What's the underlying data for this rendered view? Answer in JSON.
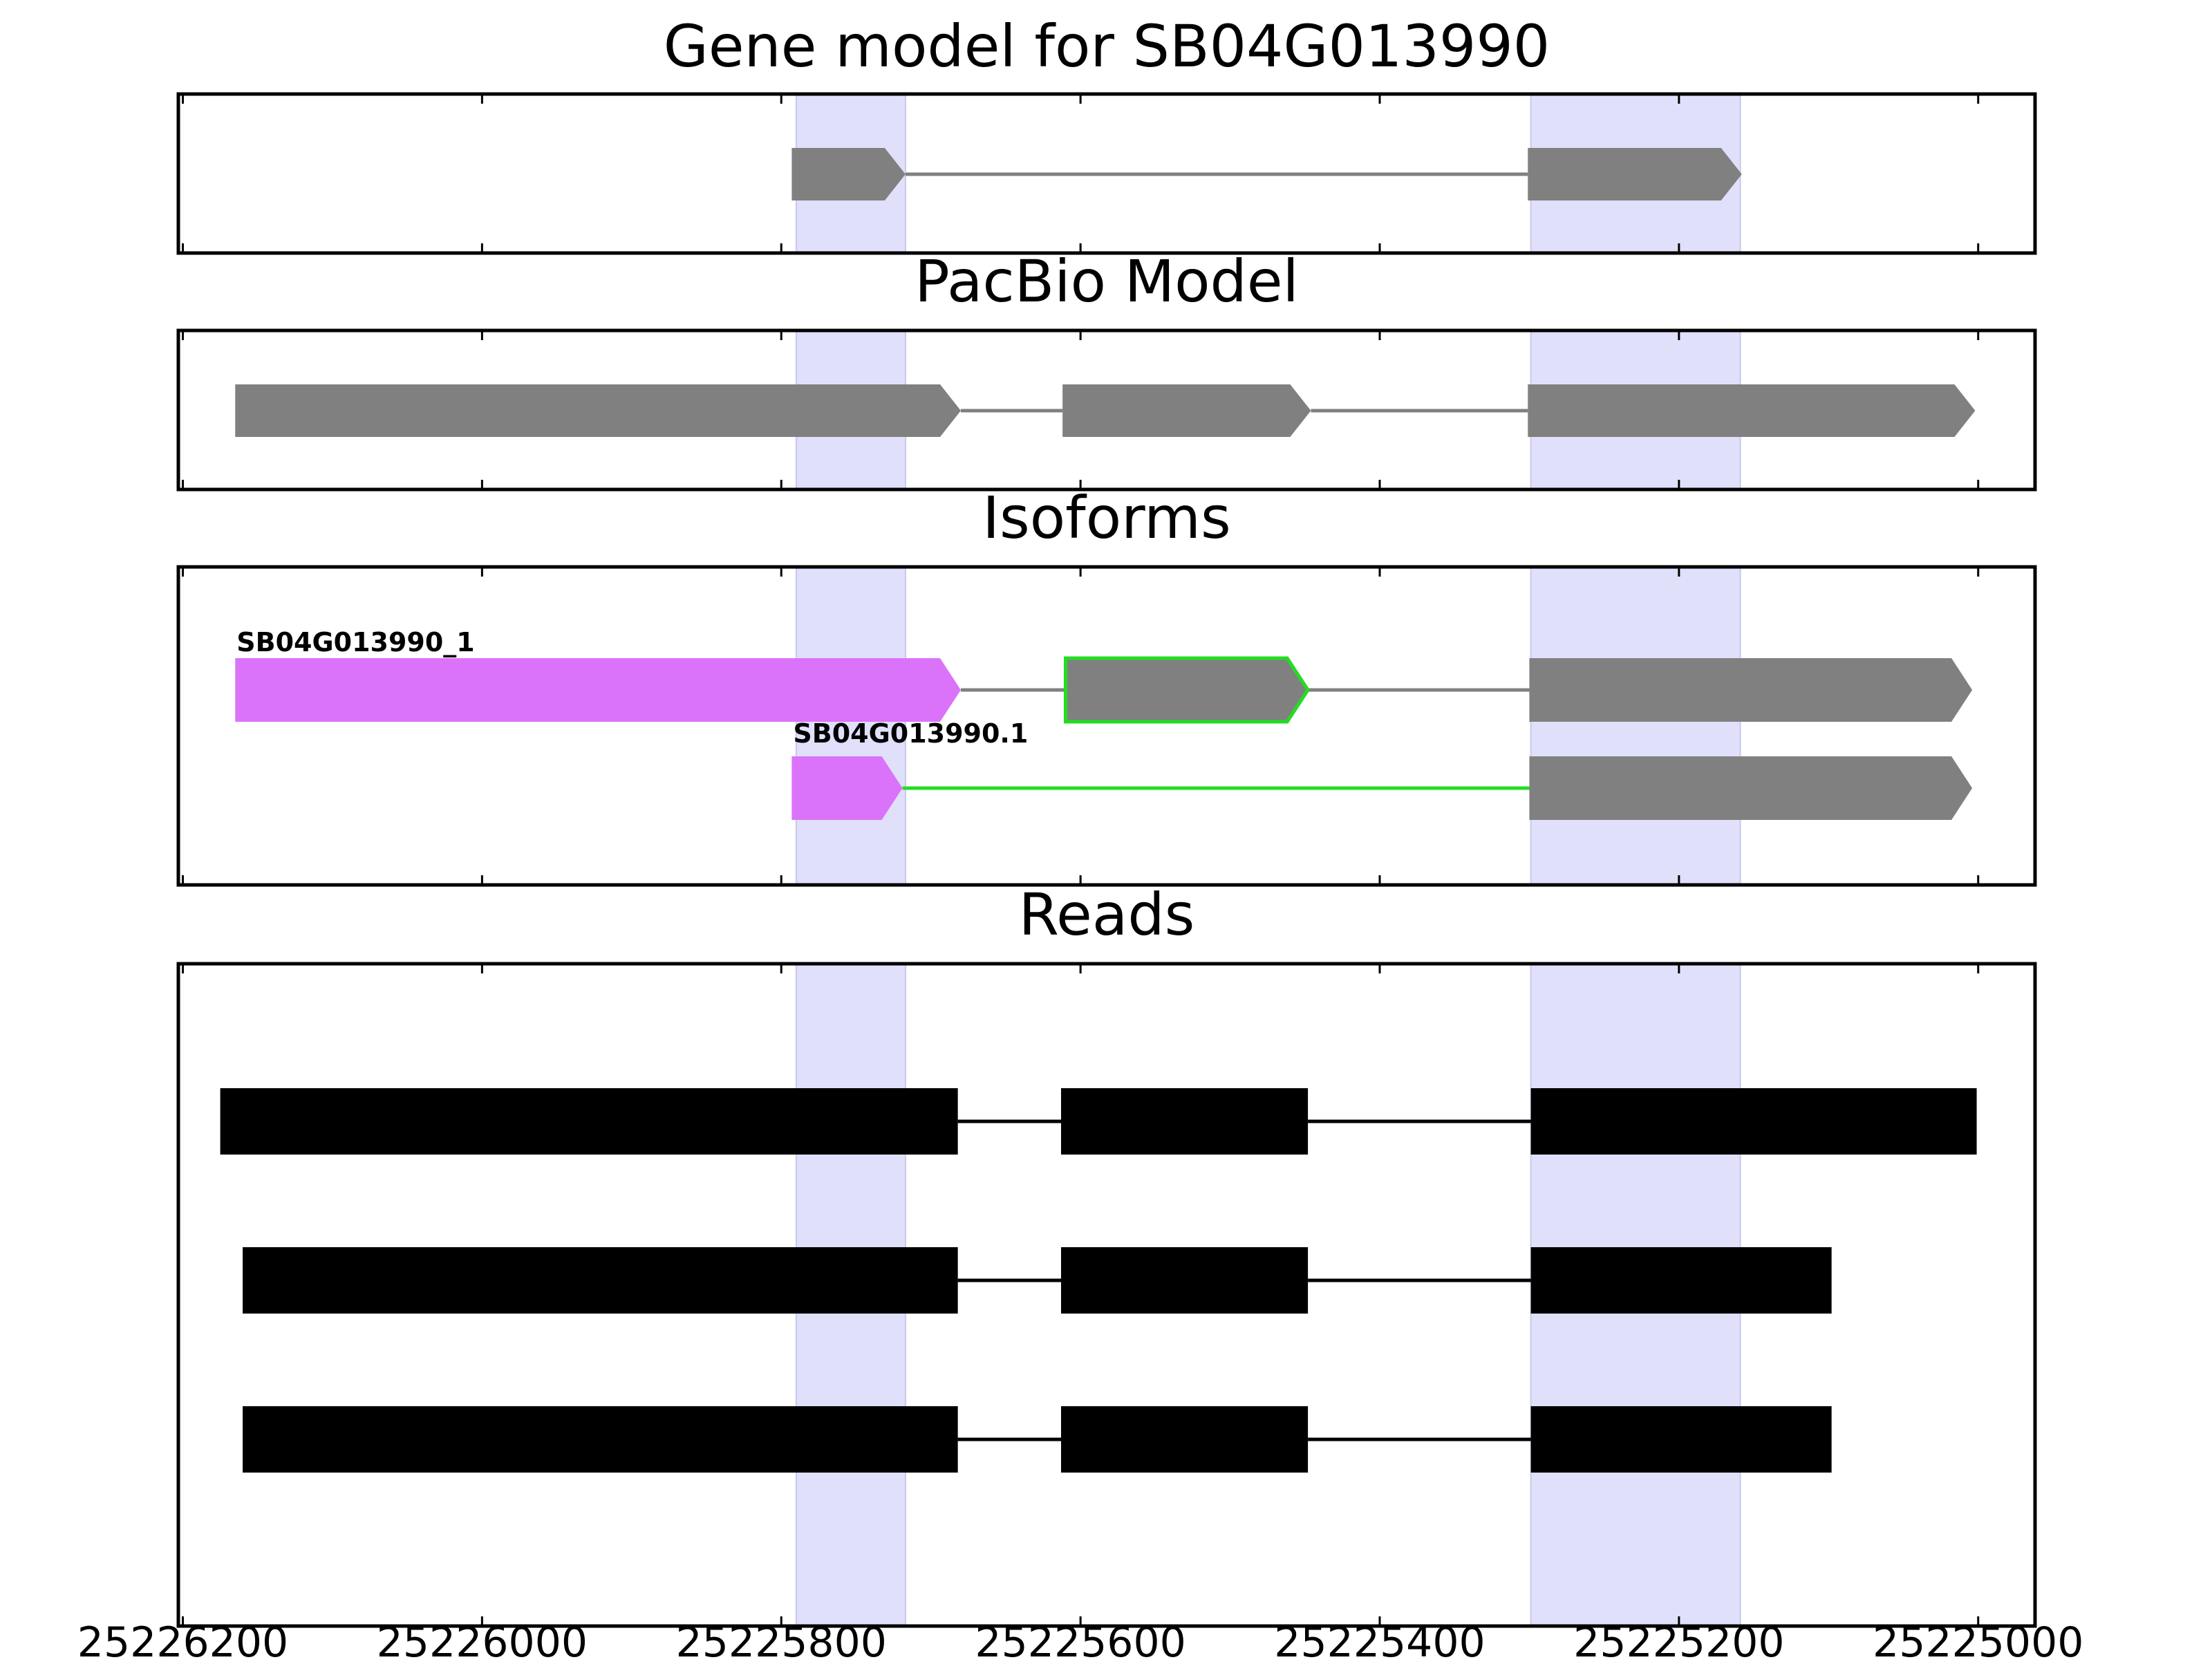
{
  "axis": {
    "x_min": 25226203,
    "x_max": 25224962,
    "ticks": [
      25226200,
      25226000,
      25225800,
      25225600,
      25225400,
      25225200,
      25225000
    ],
    "tick_labels": [
      "25226200",
      "25226000",
      "25225800",
      "25225600",
      "25225400",
      "25225200",
      "25225000"
    ]
  },
  "colors": {
    "exon": "#808080",
    "intron": "#808080",
    "highlight": "#e0e0fb",
    "isoform_utr": "#da73fa",
    "novel_outline": "#22dd22",
    "read": "#000000"
  },
  "highlights": [
    [
      25225790,
      25225717
    ],
    [
      25225299,
      25225159
    ]
  ],
  "panels": [
    {
      "id": "gene-model",
      "title": "Gene model for SB04G013990",
      "tracks": [
        {
          "label": "",
          "exons": [
            {
              "start": 25225793,
              "end": 25225717,
              "fill": "exon",
              "arrow": true
            },
            {
              "start": 25225301,
              "end": 25225158,
              "fill": "exon",
              "arrow": true
            }
          ],
          "introns": [
            {
              "start": 25225717,
              "end": 25225301,
              "color": "intron"
            }
          ]
        }
      ]
    },
    {
      "id": "pacbio-model",
      "title": "PacBio Model",
      "tracks": [
        {
          "label": "",
          "exons": [
            {
              "start": 25226165,
              "end": 25225680,
              "fill": "exon",
              "arrow": true
            },
            {
              "start": 25225612,
              "end": 25225446,
              "fill": "exon",
              "arrow": true
            },
            {
              "start": 25225301,
              "end": 25225002,
              "fill": "exon",
              "arrow": true
            }
          ],
          "introns": [
            {
              "start": 25225680,
              "end": 25225612,
              "color": "intron"
            },
            {
              "start": 25225446,
              "end": 25225301,
              "color": "intron"
            }
          ]
        }
      ]
    },
    {
      "id": "isoforms",
      "title": "Isoforms",
      "tracks": [
        {
          "label": "SB04G013990_1",
          "exons": [
            {
              "start": 25226165,
              "end": 25225680,
              "fill": "isoform_utr",
              "arrow": true
            },
            {
              "start": 25225610,
              "end": 25225448,
              "fill": "exon",
              "outline": "novel_outline",
              "arrow": true
            },
            {
              "start": 25225300,
              "end": 25225004,
              "fill": "exon",
              "arrow": true
            }
          ],
          "introns": [
            {
              "start": 25225680,
              "end": 25225610,
              "color": "intron"
            },
            {
              "start": 25225448,
              "end": 25225300,
              "color": "intron"
            }
          ]
        },
        {
          "label": "SB04G013990.1",
          "exons": [
            {
              "start": 25225793,
              "end": 25225719,
              "fill": "isoform_utr",
              "arrow": true
            },
            {
              "start": 25225300,
              "end": 25225004,
              "fill": "exon",
              "arrow": true
            }
          ],
          "introns": [
            {
              "start": 25225719,
              "end": 25225300,
              "color": "novel_outline"
            }
          ]
        }
      ]
    },
    {
      "id": "reads",
      "title": "Reads",
      "tracks": [
        {
          "label": "",
          "exons": [
            {
              "start": 25226175,
              "end": 25225682,
              "fill": "read",
              "arrow": false
            },
            {
              "start": 25225613,
              "end": 25225448,
              "fill": "read",
              "arrow": false
            },
            {
              "start": 25225299,
              "end": 25225001,
              "fill": "read",
              "arrow": false
            }
          ],
          "introns": [
            {
              "start": 25225682,
              "end": 25225613,
              "color": "read"
            },
            {
              "start": 25225448,
              "end": 25225299,
              "color": "read"
            }
          ]
        },
        {
          "label": "",
          "exons": [
            {
              "start": 25226160,
              "end": 25225682,
              "fill": "read",
              "arrow": false
            },
            {
              "start": 25225613,
              "end": 25225448,
              "fill": "read",
              "arrow": false
            },
            {
              "start": 25225299,
              "end": 25225098,
              "fill": "read",
              "arrow": false
            }
          ],
          "introns": [
            {
              "start": 25225682,
              "end": 25225613,
              "color": "read"
            },
            {
              "start": 25225448,
              "end": 25225299,
              "color": "read"
            }
          ]
        },
        {
          "label": "",
          "exons": [
            {
              "start": 25226160,
              "end": 25225682,
              "fill": "read",
              "arrow": false
            },
            {
              "start": 25225613,
              "end": 25225448,
              "fill": "read",
              "arrow": false
            },
            {
              "start": 25225299,
              "end": 25225098,
              "fill": "read",
              "arrow": false
            }
          ],
          "introns": [
            {
              "start": 25225682,
              "end": 25225613,
              "color": "read"
            },
            {
              "start": 25225448,
              "end": 25225299,
              "color": "read"
            }
          ]
        }
      ]
    }
  ]
}
